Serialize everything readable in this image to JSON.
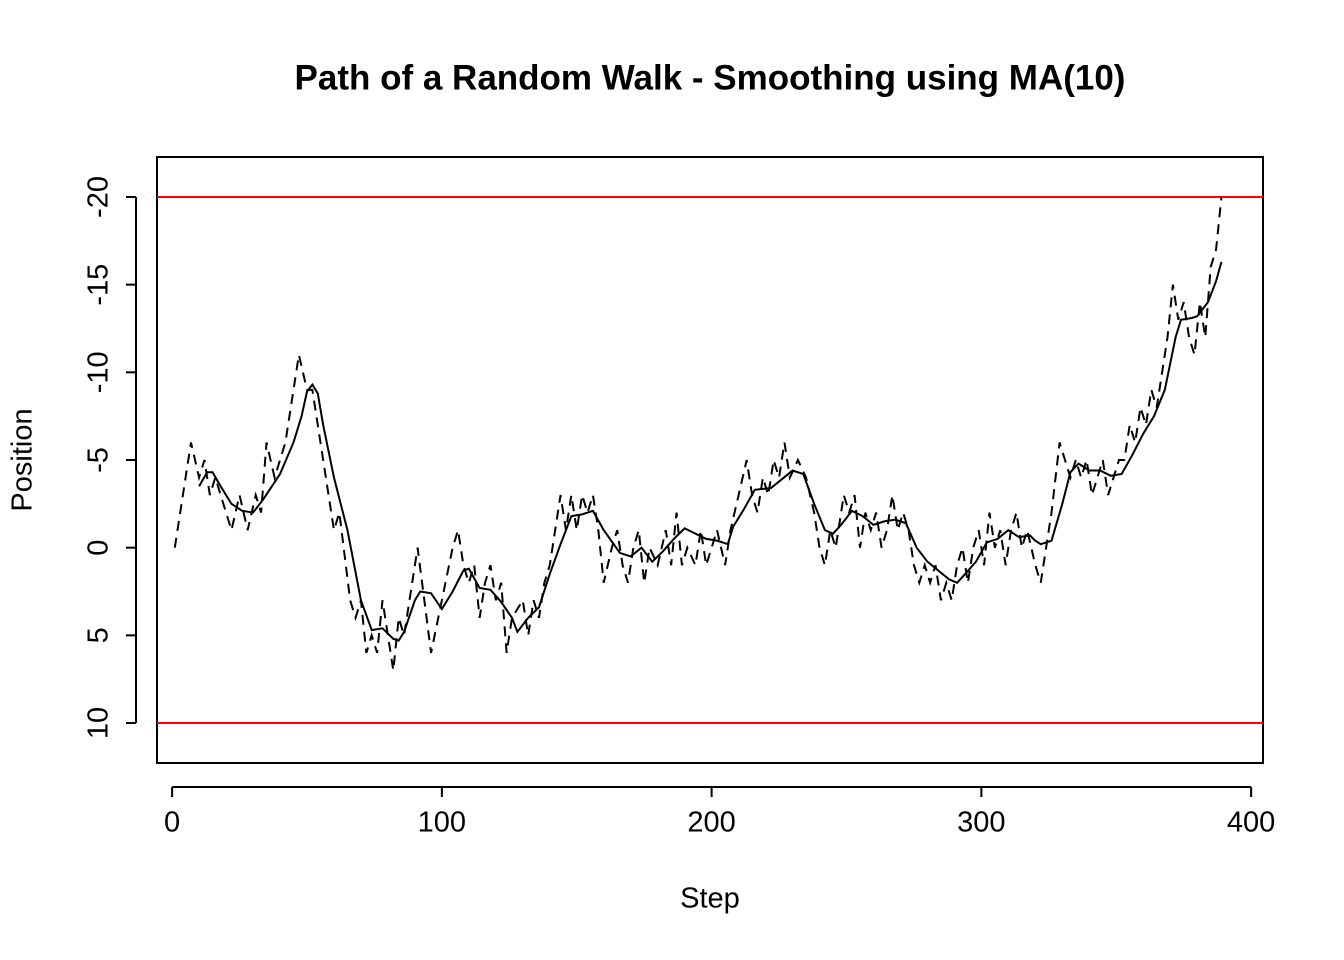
{
  "chart_data": {
    "type": "line",
    "title": "Path of a Random Walk - Smoothing using MA(10)",
    "x_label": "Step",
    "y_label": "Position",
    "xlim": [
      -5.6,
      404.4
    ],
    "ylim": [
      12.28,
      -22.28
    ],
    "xticks": [
      0,
      100,
      200,
      300,
      400
    ],
    "yticks": [
      10,
      5,
      0,
      -5,
      -10,
      -15,
      -20
    ],
    "hlines": [
      -20,
      10
    ],
    "hline_color": "#ff0000",
    "series": [
      {
        "color": "#000000",
        "dashed": true,
        "x": [
          1,
          7,
          10,
          12,
          14,
          16,
          18,
          20,
          22,
          25,
          28,
          31,
          33,
          35,
          38,
          42,
          47,
          50,
          52,
          58,
          60,
          62,
          66,
          68,
          70,
          72,
          74,
          76,
          78,
          80,
          82,
          84,
          86,
          91,
          96,
          100,
          104,
          106,
          108,
          110,
          112,
          114,
          116,
          118,
          120,
          122,
          124,
          126,
          130,
          132,
          134,
          136,
          138,
          140,
          144,
          146,
          148,
          150,
          152,
          154,
          156,
          158,
          160,
          163,
          165,
          167,
          169,
          171,
          173,
          175,
          177,
          180,
          183,
          185,
          187,
          189,
          191,
          194,
          196,
          198,
          200,
          202,
          205,
          207,
          210,
          213,
          215,
          217,
          219,
          221,
          223,
          225,
          227,
          229,
          232,
          235,
          238,
          240,
          242,
          244,
          246,
          249,
          251,
          253,
          255,
          257,
          259,
          261,
          263,
          265,
          267,
          269,
          271,
          273,
          275,
          277,
          279,
          281,
          283,
          285,
          287,
          289,
          291,
          293,
          295,
          297,
          299,
          301,
          303,
          305,
          307,
          309,
          311,
          313,
          315,
          317,
          320,
          322,
          324,
          326,
          329,
          331,
          333,
          335,
          337,
          339,
          341,
          343,
          345,
          347,
          349,
          351,
          353,
          355,
          357,
          359,
          361,
          363,
          365,
          367,
          369,
          371,
          373,
          375,
          377,
          379,
          381,
          383,
          385,
          387,
          389
        ],
        "values": [
          0,
          -6,
          -4,
          -5,
          -3,
          -4,
          -3,
          -2,
          -1,
          -3,
          -1,
          -3,
          -2,
          -6,
          -4,
          -6,
          -11,
          -9,
          -9,
          -3,
          -1,
          -2,
          3,
          4,
          3,
          6,
          5,
          6,
          3,
          5,
          7,
          4,
          5,
          0,
          6,
          3,
          0,
          -1,
          1,
          2,
          1,
          4,
          2,
          1,
          3,
          2,
          6,
          4,
          3,
          5,
          3,
          4,
          2,
          1,
          -3,
          -1,
          -3,
          -1,
          -3,
          -2,
          -3,
          -1,
          2,
          0,
          -1,
          1,
          2,
          0,
          -1,
          2,
          0,
          1,
          -1,
          1,
          -2,
          1,
          0,
          1,
          -1,
          1,
          0,
          -1,
          1,
          -1,
          -3,
          -5,
          -3,
          -2,
          -4,
          -3,
          -5,
          -4,
          -6,
          -4,
          -5,
          -4,
          -2,
          0,
          1,
          -1,
          0,
          -3,
          -2,
          -3,
          0,
          -2,
          -1,
          -2,
          0,
          -1,
          -3,
          -1,
          -2,
          -1,
          1,
          2,
          1,
          2,
          1,
          3,
          2,
          3,
          1,
          0,
          2,
          0,
          -1,
          1,
          -2,
          0,
          -1,
          1,
          -1,
          -2,
          0,
          -1,
          1,
          2,
          0,
          -2,
          -6,
          -5,
          -4,
          -5,
          -4,
          -5,
          -3,
          -4,
          -5,
          -3,
          -4,
          -5,
          -5,
          -7,
          -6,
          -8,
          -7,
          -9,
          -8,
          -10,
          -12,
          -15,
          -13,
          -14,
          -12,
          -11,
          -14,
          -12,
          -16,
          -17,
          -20
        ]
      },
      {
        "color": "#000000",
        "dashed": false,
        "x": [
          10,
          13,
          15,
          18,
          22,
          26,
          30,
          34,
          40,
          45,
          48,
          50,
          52,
          54,
          56,
          60,
          65,
          70,
          74,
          78,
          82,
          84,
          86,
          90,
          92,
          96,
          100,
          104,
          108,
          110,
          114,
          118,
          122,
          126,
          128,
          132,
          136,
          140,
          144,
          148,
          152,
          156,
          160,
          166,
          170,
          174,
          178,
          182,
          186,
          190,
          194,
          198,
          202,
          206,
          208,
          212,
          216,
          222,
          226,
          230,
          234,
          238,
          242,
          245,
          248,
          252,
          256,
          260,
          264,
          268,
          272,
          276,
          280,
          284,
          288,
          291,
          294,
          298,
          302,
          306,
          310,
          314,
          318,
          320,
          322,
          326,
          330,
          333,
          336,
          340,
          344,
          348,
          352,
          356,
          360,
          364,
          368,
          370,
          372,
          374,
          378,
          380,
          384,
          387,
          389
        ],
        "values": [
          -3.5,
          -4.3,
          -4.3,
          -3.5,
          -2.5,
          -2.1,
          -2,
          -2.8,
          -4.2,
          -6,
          -7.5,
          -8.9,
          -9.3,
          -8.8,
          -7,
          -4,
          -1,
          3,
          4.7,
          4.6,
          5.2,
          5.3,
          4.8,
          3,
          2.5,
          2.6,
          3.5,
          2.5,
          1.3,
          1.2,
          2.3,
          2.4,
          3.1,
          4,
          4.8,
          4,
          3.4,
          1.5,
          -0.2,
          -1.8,
          -1.9,
          -2.1,
          -1,
          0.3,
          0.5,
          0,
          0.8,
          0.2,
          -0.5,
          -1.1,
          -0.8,
          -0.5,
          -0.4,
          -0.2,
          -1.2,
          -2.2,
          -3.3,
          -3.4,
          -3.9,
          -4.4,
          -4.2,
          -2.5,
          -1,
          -0.8,
          -1.3,
          -2.1,
          -1.8,
          -1.3,
          -1.5,
          -1.6,
          -1.4,
          0,
          0.8,
          1.3,
          1.8,
          2,
          1.5,
          0.8,
          -0.3,
          -0.5,
          -1,
          -0.6,
          -0.7,
          -0.4,
          -0.2,
          -0.4,
          -2.5,
          -4.3,
          -4.8,
          -4.4,
          -4.4,
          -4.1,
          -4.2,
          -5.3,
          -6.5,
          -7.5,
          -9,
          -10.5,
          -12,
          -13,
          -13.1,
          -13.2,
          -14,
          -15.2,
          -16.3
        ]
      }
    ]
  }
}
